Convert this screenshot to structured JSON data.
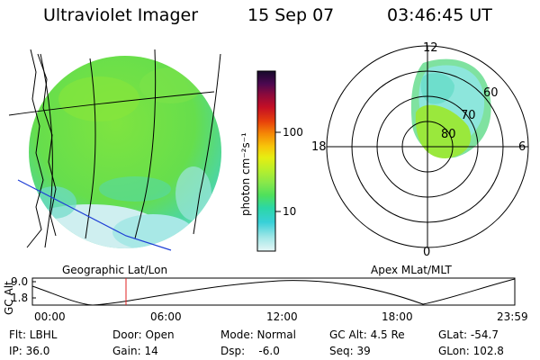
{
  "header": {
    "title": "Ultraviolet Imager",
    "date": "15 Sep 07",
    "time": "03:46:45 UT"
  },
  "geo_panel": {
    "caption": "Geographic Lat/Lon"
  },
  "colorbar": {
    "unit_label": "photon cm⁻²s⁻¹",
    "ticks": [
      "100",
      "10"
    ],
    "colors": [
      "#e6f7f7",
      "#9ee6e6",
      "#38d0d8",
      "#2bd7a6",
      "#4fe05c",
      "#88e84a",
      "#b7ef2c",
      "#e6ee12",
      "#f7c60a",
      "#f58a06",
      "#e7410b",
      "#c40e25",
      "#8b0a3c",
      "#4b0850",
      "#160a2b"
    ]
  },
  "polar_panel": {
    "caption": "Apex MLat/MLT",
    "mlt_labels": [
      "12",
      "18",
      "6",
      "0"
    ],
    "mlat_labels": [
      "60",
      "70",
      "80"
    ]
  },
  "altitude_plot": {
    "ylabel": "GC Alt",
    "yticks": [
      "9.0",
      "1.8"
    ],
    "xticks": [
      "00:00",
      "06:00",
      "12:00",
      "18:00",
      "23:59"
    ],
    "marker_time": "03:46:45",
    "marker_color": "#e02020"
  },
  "status": {
    "col1": [
      "Flt: LBHL",
      "IP: 36.0"
    ],
    "col2": [
      "Door: Open",
      "Gain: 14"
    ],
    "col3": [
      "Mode: Normal",
      "Dsp:    -6.0"
    ],
    "col4": [
      "GC Alt: 4.5 Re",
      "Seq: 39"
    ],
    "col5": [
      "GLat: -54.7",
      "GLon: 102.8"
    ]
  },
  "colors": {
    "image_base": "#6fe044",
    "image_low": "#48d6c4",
    "image_faint": "#c8f0ee",
    "lon_line": "#000000",
    "terminator": "#1f3fd6"
  }
}
